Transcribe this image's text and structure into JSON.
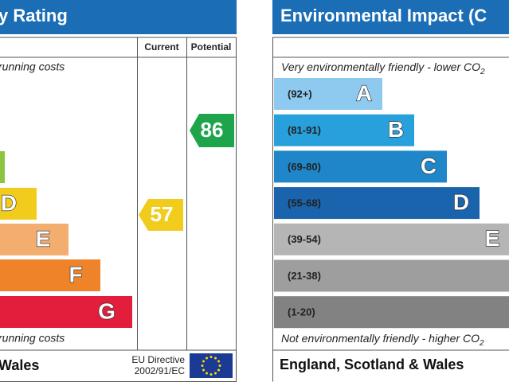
{
  "left_panel": {
    "title": "y Rating",
    "columns": [
      "Current",
      "Potential"
    ],
    "top_note": "running costs",
    "bottom_note": "running costs",
    "bands": [
      {
        "letter": "D"
      },
      {
        "letter": "E"
      },
      {
        "letter": "F"
      },
      {
        "letter": "G"
      }
    ],
    "current": "57",
    "potential": "86",
    "footer": "Wales",
    "directive": [
      "EU Directive",
      "2002/91/EC"
    ]
  },
  "right_panel": {
    "title": "Environmental Impact (C",
    "top_note": "Very environmentally friendly - lower CO",
    "top_note_sub": "2",
    "bottom_note": "Not environmentally friendly - higher CO",
    "bottom_note_sub": "2",
    "bands": [
      {
        "range": "(92+)",
        "letter": "A"
      },
      {
        "range": "(81-91)",
        "letter": "B"
      },
      {
        "range": "(69-80)",
        "letter": "C"
      },
      {
        "range": "(55-68)",
        "letter": "D"
      },
      {
        "range": "(39-54)",
        "letter": "E"
      },
      {
        "range": "(21-38)"
      },
      {
        "range": "(1-20)"
      }
    ],
    "footer": "England, Scotland & Wales"
  }
}
